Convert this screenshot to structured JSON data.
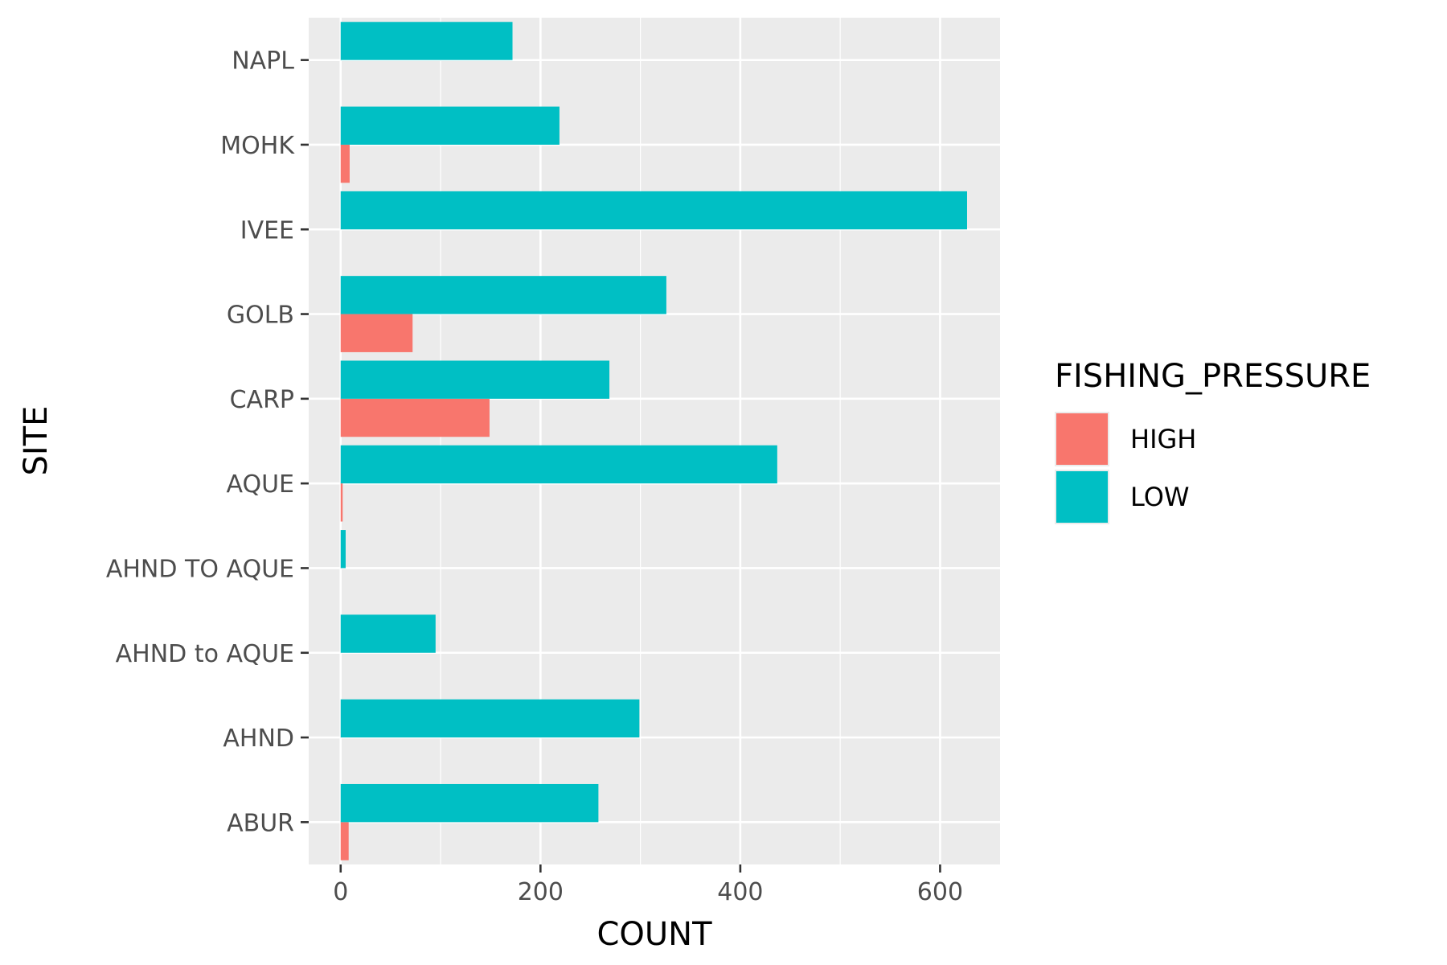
{
  "chart_data": {
    "type": "bar",
    "orientation": "horizontal",
    "position": "dodge",
    "xlabel": "COUNT",
    "ylabel": "SITE",
    "xlim": [
      -32,
      660
    ],
    "x_ticks": [
      0,
      200,
      400,
      600
    ],
    "x_minor_ticks": [
      100,
      300,
      500
    ],
    "grid": true,
    "categories": [
      "ABUR",
      "AHND",
      "AHND to AQUE",
      "AHND TO AQUE",
      "AQUE",
      "CARP",
      "GOLB",
      "IVEE",
      "MOHK",
      "NAPL"
    ],
    "series": [
      {
        "name": "HIGH",
        "color": "#F8766D",
        "values": [
          8,
          null,
          null,
          null,
          2,
          149,
          72,
          null,
          9,
          null
        ]
      },
      {
        "name": "LOW",
        "color": "#00BFC4",
        "values": [
          258,
          299,
          95,
          5,
          437,
          269,
          326,
          627,
          219,
          172
        ]
      }
    ],
    "legend": {
      "title": "FISHING_PRESSURE",
      "placement": "right",
      "items": [
        "HIGH",
        "LOW"
      ]
    }
  }
}
